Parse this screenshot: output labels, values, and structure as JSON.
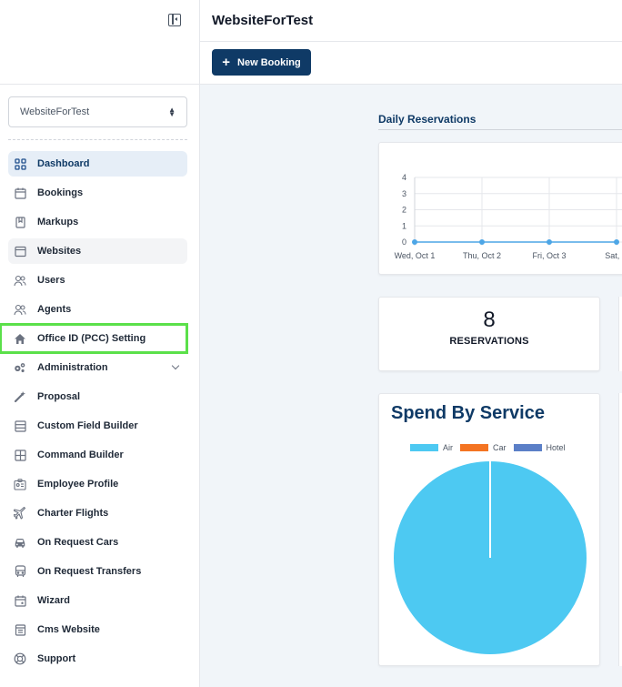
{
  "header": {
    "title": "WebsiteForTest",
    "new_booking_label": "New Booking"
  },
  "sidebar": {
    "site_select_value": "WebsiteForTest",
    "items": [
      {
        "label": "Dashboard"
      },
      {
        "label": "Bookings"
      },
      {
        "label": "Markups"
      },
      {
        "label": "Websites"
      },
      {
        "label": "Users"
      },
      {
        "label": "Agents"
      },
      {
        "label": "Office ID (PCC) Setting"
      },
      {
        "label": "Administration"
      },
      {
        "label": "Proposal"
      },
      {
        "label": "Custom Field Builder"
      },
      {
        "label": "Command Builder"
      },
      {
        "label": "Employee Profile"
      },
      {
        "label": "Charter Flights"
      },
      {
        "label": "On Request Cars"
      },
      {
        "label": "On Request Transfers"
      },
      {
        "label": "Wizard"
      },
      {
        "label": "Cms Website"
      },
      {
        "label": "Support"
      }
    ]
  },
  "daily_reservations": {
    "title": "Daily Reservations"
  },
  "reservations": {
    "count": "8",
    "label": "RESERVATIONS"
  },
  "spend": {
    "title": "Spend By Service"
  },
  "chart_data": [
    {
      "type": "line",
      "title": "",
      "x": [
        "Wed, Oct 1",
        "Thu, Oct 2",
        "Fri, Oct 3",
        "Sat, O"
      ],
      "series": [
        {
          "values": [
            0,
            0,
            0,
            0
          ]
        }
      ],
      "yticks": [
        "0",
        "1",
        "2",
        "3",
        "4"
      ],
      "ylim": [
        0,
        4
      ],
      "color": "#4da6e6",
      "grid": true
    },
    {
      "type": "pie",
      "title": "Spend By Service",
      "categories": [
        "Air",
        "Car",
        "Hotel"
      ],
      "values": [
        100,
        0,
        0
      ],
      "colors": [
        "#4dc9f2",
        "#f47422",
        "#5b7fc7"
      ],
      "legend": "top"
    }
  ]
}
